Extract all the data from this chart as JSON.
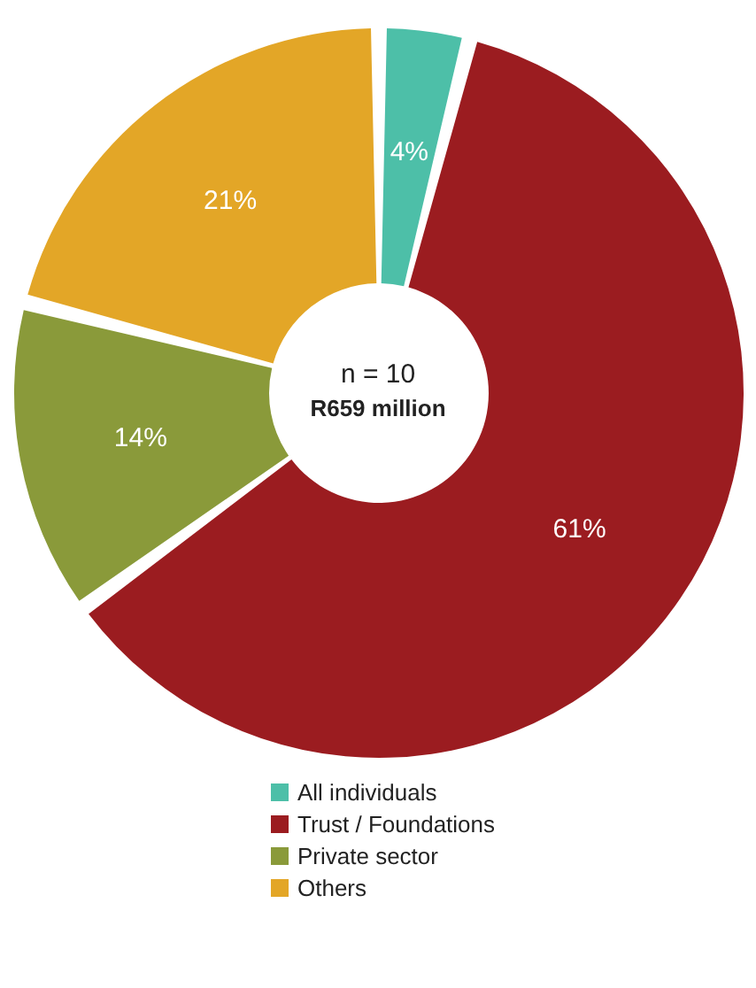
{
  "chart_data": {
    "type": "donut",
    "categories": [
      "All individuals",
      "Trust / Foundations",
      "Private sector",
      "Others"
    ],
    "values": [
      4,
      61,
      14,
      21
    ],
    "colors": [
      "#4dbfa8",
      "#9b1c20",
      "#8a9a3a",
      "#e3a627"
    ],
    "value_labels": [
      "4%",
      "61%",
      "14%",
      "21%"
    ],
    "annotations": [
      "n = 10",
      "R659 million"
    ],
    "legend": "bottom"
  }
}
